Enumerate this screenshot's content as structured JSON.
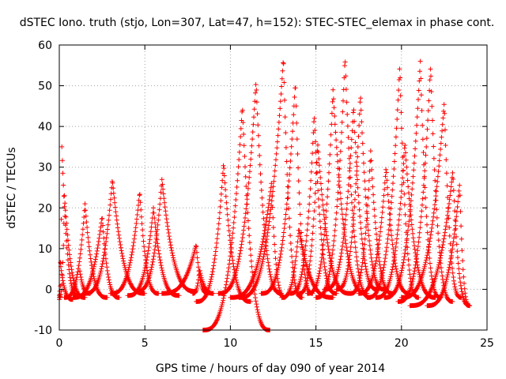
{
  "chart_data": {
    "type": "scatter",
    "title": "dSTEC Iono. truth (stjo, Lon=307, Lat=47, h=152): STEC-STEC_elemax in phase cont.",
    "xlabel": "GPS time / hours of day 090 of year 2014",
    "ylabel": "dSTEC  / TECUs",
    "xlim": [
      0,
      25
    ],
    "ylim": [
      -10,
      60
    ],
    "x_ticks": [
      0,
      5,
      10,
      15,
      20,
      25
    ],
    "y_ticks": [
      -10,
      0,
      10,
      20,
      30,
      40,
      50,
      60
    ],
    "grid": true,
    "marker": "+",
    "color": "#ff0000",
    "arcs": [
      {
        "start": 0.0,
        "peak_time": 0.15,
        "end": 1.1,
        "peak": 35,
        "dip": -1.5
      },
      {
        "start": 0.0,
        "peak_time": 0.3,
        "end": 1.5,
        "peak": 23,
        "dip": -2
      },
      {
        "start": 0.0,
        "peak_time": 0.05,
        "end": 0.8,
        "peak": 7,
        "dip": -2.5
      },
      {
        "start": 0.3,
        "peak_time": 1.5,
        "end": 2.8,
        "peak": 21,
        "dip": -2
      },
      {
        "start": 0.8,
        "peak_time": 2.5,
        "end": 3.5,
        "peak": 18,
        "dip": -2
      },
      {
        "start": 1.2,
        "peak_time": 1.0,
        "end": 1.8,
        "peak": 12,
        "dip": -1
      },
      {
        "start": 1.5,
        "peak_time": 3.1,
        "end": 5.0,
        "peak": 27,
        "dip": -1
      },
      {
        "start": 3.0,
        "peak_time": 4.7,
        "end": 5.8,
        "peak": 24,
        "dip": -1
      },
      {
        "start": 4.0,
        "peak_time": 5.5,
        "end": 7.0,
        "peak": 20,
        "dip": -1.5
      },
      {
        "start": 4.5,
        "peak_time": 6.0,
        "end": 8.0,
        "peak": 27,
        "dip": -0.5
      },
      {
        "start": 6.0,
        "peak_time": 8.0,
        "end": 8.7,
        "peak": 11,
        "dip": -1
      },
      {
        "start": 7.8,
        "peak_time": 8.2,
        "end": 9.0,
        "peak": 5,
        "dip": -1
      },
      {
        "start": 8.0,
        "peak_time": 9.6,
        "end": 11.2,
        "peak": 31,
        "dip": -3
      },
      {
        "start": 8.4,
        "peak_time": 10.7,
        "end": 12.3,
        "peak": 45,
        "dip": -10
      },
      {
        "start": 9.3,
        "peak_time": 11.5,
        "end": 13.0,
        "peak": 51,
        "dip": -1
      },
      {
        "start": 10.0,
        "peak_time": 12.4,
        "end": 13.2,
        "peak": 26,
        "dip": -2
      },
      {
        "start": 10.5,
        "peak_time": 13.1,
        "end": 14.2,
        "peak": 57,
        "dip": -2
      },
      {
        "start": 11.8,
        "peak_time": 13.8,
        "end": 14.8,
        "peak": 51,
        "dip": -1
      },
      {
        "start": 13.0,
        "peak_time": 14.0,
        "end": 16.0,
        "peak": 15,
        "dip": -2
      },
      {
        "start": 13.5,
        "peak_time": 14.9,
        "end": 16.2,
        "peak": 43,
        "dip": -1
      },
      {
        "start": 14.0,
        "peak_time": 15.1,
        "end": 17.0,
        "peak": 36,
        "dip": -1
      },
      {
        "start": 14.5,
        "peak_time": 16.0,
        "end": 18.0,
        "peak": 49,
        "dip": -1
      },
      {
        "start": 15.0,
        "peak_time": 16.7,
        "end": 18.2,
        "peak": 57,
        "dip": -2
      },
      {
        "start": 15.5,
        "peak_time": 17.2,
        "end": 18.6,
        "peak": 45,
        "dip": 0
      },
      {
        "start": 16.2,
        "peak_time": 17.6,
        "end": 19.0,
        "peak": 48,
        "dip": 0
      },
      {
        "start": 17.0,
        "peak_time": 18.2,
        "end": 19.5,
        "peak": 34,
        "dip": -1
      },
      {
        "start": 17.5,
        "peak_time": 19.1,
        "end": 20.5,
        "peak": 30,
        "dip": -1
      },
      {
        "start": 18.0,
        "peak_time": 19.9,
        "end": 21.0,
        "peak": 55,
        "dip": -2
      },
      {
        "start": 18.5,
        "peak_time": 20.2,
        "end": 22.0,
        "peak": 36,
        "dip": -2
      },
      {
        "start": 19.0,
        "peak_time": 21.1,
        "end": 22.3,
        "peak": 56,
        "dip": -2
      },
      {
        "start": 19.8,
        "peak_time": 21.7,
        "end": 23.0,
        "peak": 55,
        "dip": -3
      },
      {
        "start": 20.0,
        "peak_time": 22.5,
        "end": 23.5,
        "peak": 46,
        "dip": -2
      },
      {
        "start": 20.5,
        "peak_time": 23.0,
        "end": 24.0,
        "peak": 29,
        "dip": -4
      },
      {
        "start": 21.5,
        "peak_time": 23.4,
        "end": 24.0,
        "peak": 26,
        "dip": -4
      }
    ]
  }
}
